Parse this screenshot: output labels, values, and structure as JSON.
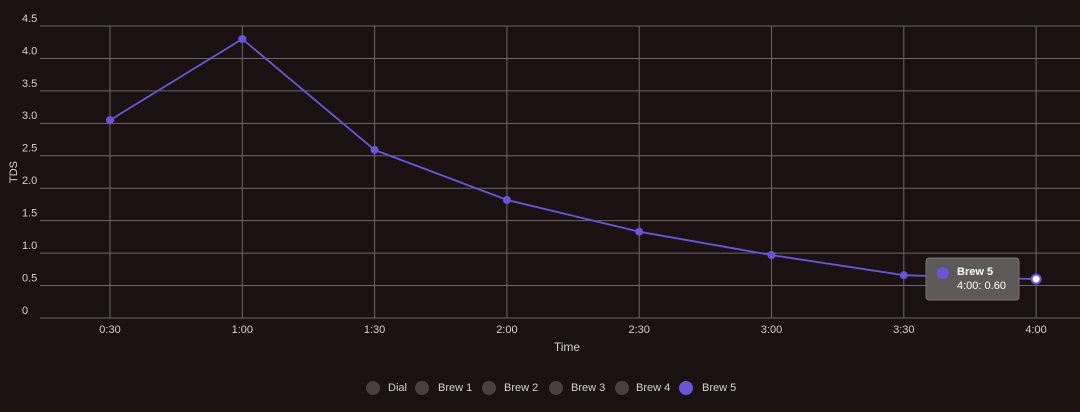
{
  "chart_data": {
    "type": "line",
    "x_label": "Time",
    "y_label": "TDS",
    "categories": [
      "0:30",
      "1:00",
      "1:30",
      "2:00",
      "2:30",
      "3:00",
      "3:30",
      "4:00"
    ],
    "series": [
      {
        "name": "Brew 5",
        "color": "#6a55d6",
        "values": [
          3.05,
          4.3,
          2.59,
          1.82,
          1.33,
          0.97,
          0.66,
          0.6
        ]
      }
    ],
    "ylim": [
      0,
      4.5
    ],
    "yticks": [
      0,
      0.5,
      {
        "value": 1,
        "label": "1.0"
      },
      1.5,
      {
        "value": 2,
        "label": "2.0"
      },
      2.5,
      {
        "value": 3,
        "label": "3.0"
      },
      3.5,
      {
        "value": 4,
        "label": "4.0"
      },
      4.5
    ],
    "grid": true,
    "legend_items": [
      "Dial",
      "Brew 1",
      "Brew 2",
      "Brew 3",
      "Brew 4",
      "Brew 5"
    ],
    "legend_active": "Brew 5",
    "legend_inactive_color": "#4a4040",
    "tooltip": {
      "title": "Brew 5",
      "text": "4:00: 0.60"
    }
  }
}
